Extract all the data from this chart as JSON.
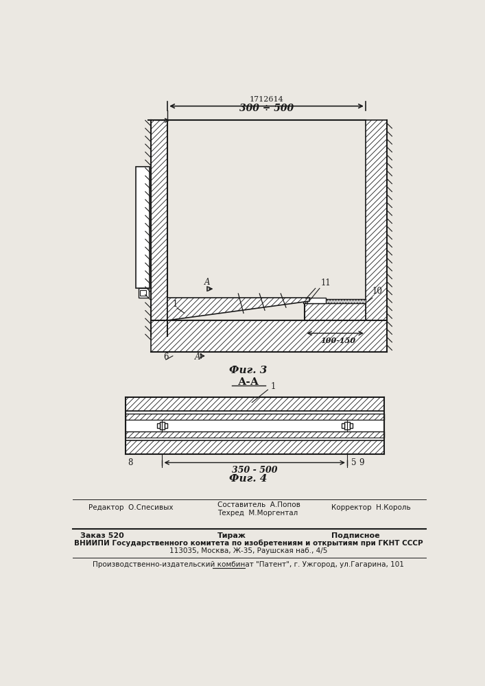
{
  "bg_color": "#ebe8e2",
  "line_color": "#1a1a1a",
  "patent_number": "1712614",
  "dim1_text": "300 ÷ 500",
  "dim2_text": "100-150",
  "dim3_text": "350 - 500",
  "fig3_label": "Фиг. 3",
  "fig4_label": "Фиг. 4",
  "aa_label": "А-А",
  "editor_line": "Редактор  О.Спесивых",
  "compiler_line": "Составитель  А.Попов",
  "techred_line": "Техред  М.Моргентал",
  "corrector_line": "Корректор  Н.Король",
  "order_line": "Заказ 520",
  "tiraj_line": "Тираж",
  "podpisnoe_line": "Подписное",
  "vniiipi_line": "ВНИИПИ Государственного комитета по изобретениям и открытиям при ГКНТ СССР",
  "address_line": "113035, Москва, Ж-35, Раушская наб., 4/5",
  "proizv_line": "Производственно-издательский комбинат \"Патент\", г. Ужгород, ул.Гагарина, 101"
}
